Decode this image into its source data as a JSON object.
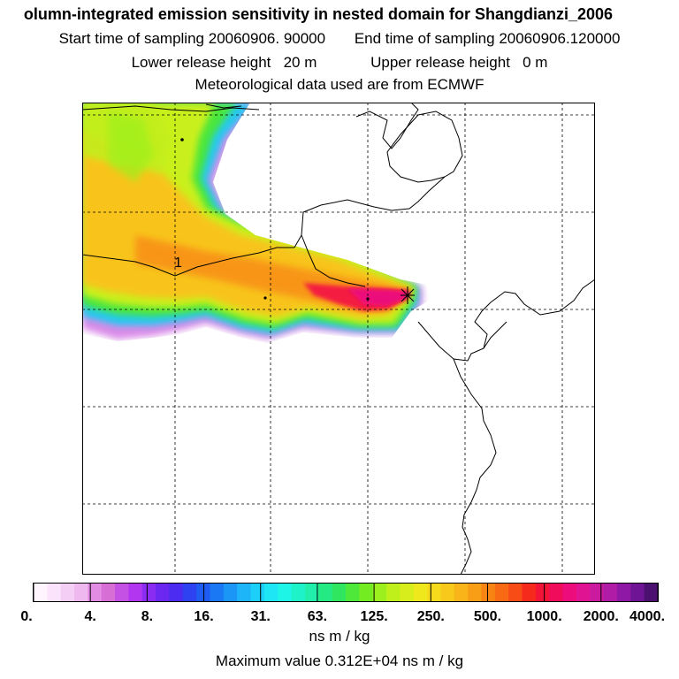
{
  "header": {
    "title": "olumn-integrated emission sensitivity in nested domain for Shangdianzi_2006",
    "start_label": "Start time of sampling",
    "start_value": "20060906. 90000",
    "end_label": "End time of sampling",
    "end_value": "20060906.120000",
    "lower_label": "Lower release height",
    "lower_value": "20 m",
    "upper_label": "Upper release height",
    "upper_value": "0 m",
    "met_text": "Meteorological data used are from ECMWF"
  },
  "map": {
    "grid_style": "dashed",
    "marker_label": "1",
    "receptor_symbol": "star"
  },
  "colorbar": {
    "tick_labels": [
      "0.",
      "4.",
      "8.",
      "16.",
      "31.",
      "63.",
      "125.",
      "250.",
      "500.",
      "1000.",
      "2000.",
      "4000."
    ],
    "colors": [
      "#fff5ff",
      "#fbe3fb",
      "#f5cef5",
      "#efb8ef",
      "#e38ce3",
      "#d66ed6",
      "#c450e4",
      "#b236f0",
      "#8a2cf2",
      "#6a27f0",
      "#4b2cf0",
      "#2f42f2",
      "#1e5cf2",
      "#1b78f4",
      "#1c96f6",
      "#1db4f8",
      "#1ccff8",
      "#1ee6f4",
      "#1ef5e6",
      "#1ef2c8",
      "#20eeaa",
      "#24ea84",
      "#30e660",
      "#4ee83a",
      "#74ec22",
      "#9cf01e",
      "#bff01c",
      "#d8ee1c",
      "#eee81c",
      "#f6da1c",
      "#f8c81a",
      "#f8b418",
      "#f89e16",
      "#f88414",
      "#f86a14",
      "#f84c16",
      "#f62a1c",
      "#f41438",
      "#f00c5a",
      "#ec0c7c",
      "#e01492",
      "#ca1a9e",
      "#b01ca6",
      "#9018a6",
      "#6e1494",
      "#4c1070"
    ],
    "units": "ns m / kg"
  },
  "max_value_text": "Maximum value  0.312E+04 ns m / kg"
}
